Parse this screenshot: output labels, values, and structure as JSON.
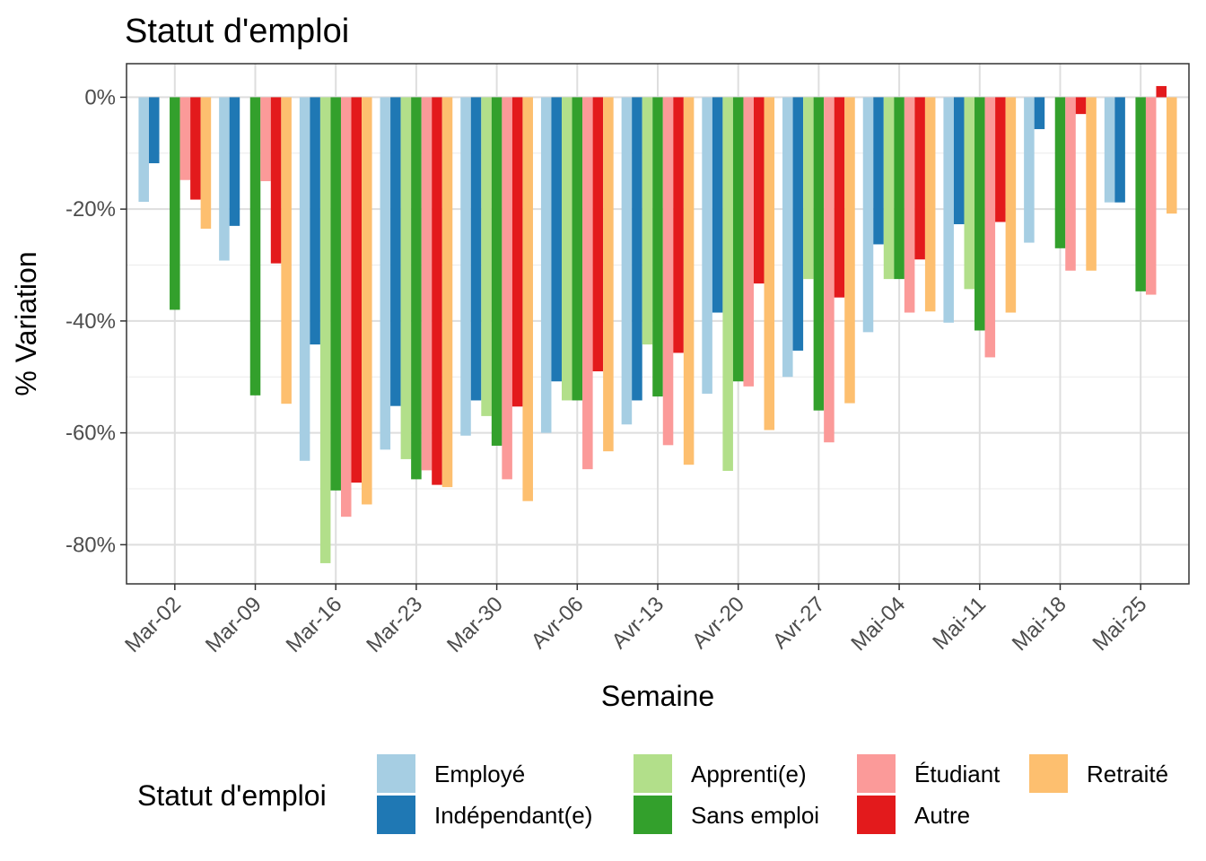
{
  "chart_data": {
    "type": "bar",
    "title": "Statut d'emploi",
    "xlabel": "Semaine",
    "ylabel": "% Variation",
    "ylim": [
      -87,
      6
    ],
    "y_ticks": [
      0,
      -20,
      -40,
      -60,
      -80
    ],
    "y_tick_labels": [
      "0%",
      "-20%",
      "-40%",
      "-60%",
      "-80%"
    ],
    "grid": true,
    "legend_position": "bottom",
    "legend_title": "Statut d'emploi",
    "categories": [
      "Mar-02",
      "Mar-09",
      "Mar-16",
      "Mar-23",
      "Mar-30",
      "Avr-06",
      "Avr-13",
      "Avr-20",
      "Avr-27",
      "Mai-04",
      "Mai-11",
      "Mai-18",
      "Mai-25"
    ],
    "series": [
      {
        "name": "Employé",
        "color": "#A6CEE3",
        "values": [
          -18.7,
          -29.2,
          -65,
          -63,
          -60.5,
          -60,
          -58.5,
          -53,
          -50,
          -42,
          -40.3,
          -26,
          -18.8
        ]
      },
      {
        "name": "Indépendant(e)",
        "color": "#1F78B4",
        "values": [
          -11.8,
          -23,
          -44.2,
          -55.2,
          -54.2,
          -50.8,
          -54.2,
          -38.5,
          -45.3,
          -26.3,
          -22.7,
          -5.7,
          -18.8
        ]
      },
      {
        "name": "Apprenti(e)",
        "color": "#B2DF8A",
        "values": [
          null,
          null,
          -83.3,
          -64.7,
          -57,
          -54.2,
          -44.2,
          -66.8,
          -32.5,
          -32.5,
          -34.3,
          null,
          null
        ]
      },
      {
        "name": "Sans emploi",
        "color": "#33A02C",
        "values": [
          -38,
          -53.3,
          -70.3,
          -68.3,
          -62.3,
          -54.2,
          -53.5,
          -50.8,
          -56,
          -32.5,
          -41.7,
          -27,
          -34.7
        ]
      },
      {
        "name": "Étudiant",
        "color": "#FB9A99",
        "values": [
          -14.8,
          -15,
          -75,
          -66.7,
          -68.3,
          -66.5,
          -62.2,
          -51.7,
          -61.7,
          -38.5,
          -46.5,
          -31,
          -35.3
        ]
      },
      {
        "name": "Autre",
        "color": "#E31A1C",
        "values": [
          -18.3,
          -29.7,
          -68.9,
          -69.3,
          -55.3,
          -49,
          -45.7,
          -33.3,
          -35.8,
          -29,
          -22.3,
          -3,
          2
        ]
      },
      {
        "name": "Retraité",
        "color": "#FDBF6F",
        "values": [
          -23.5,
          -54.8,
          -72.8,
          -69.7,
          -72.2,
          -63.3,
          -65.7,
          -59.5,
          -54.7,
          -38.3,
          -38.5,
          -31,
          -20.8
        ]
      }
    ]
  }
}
